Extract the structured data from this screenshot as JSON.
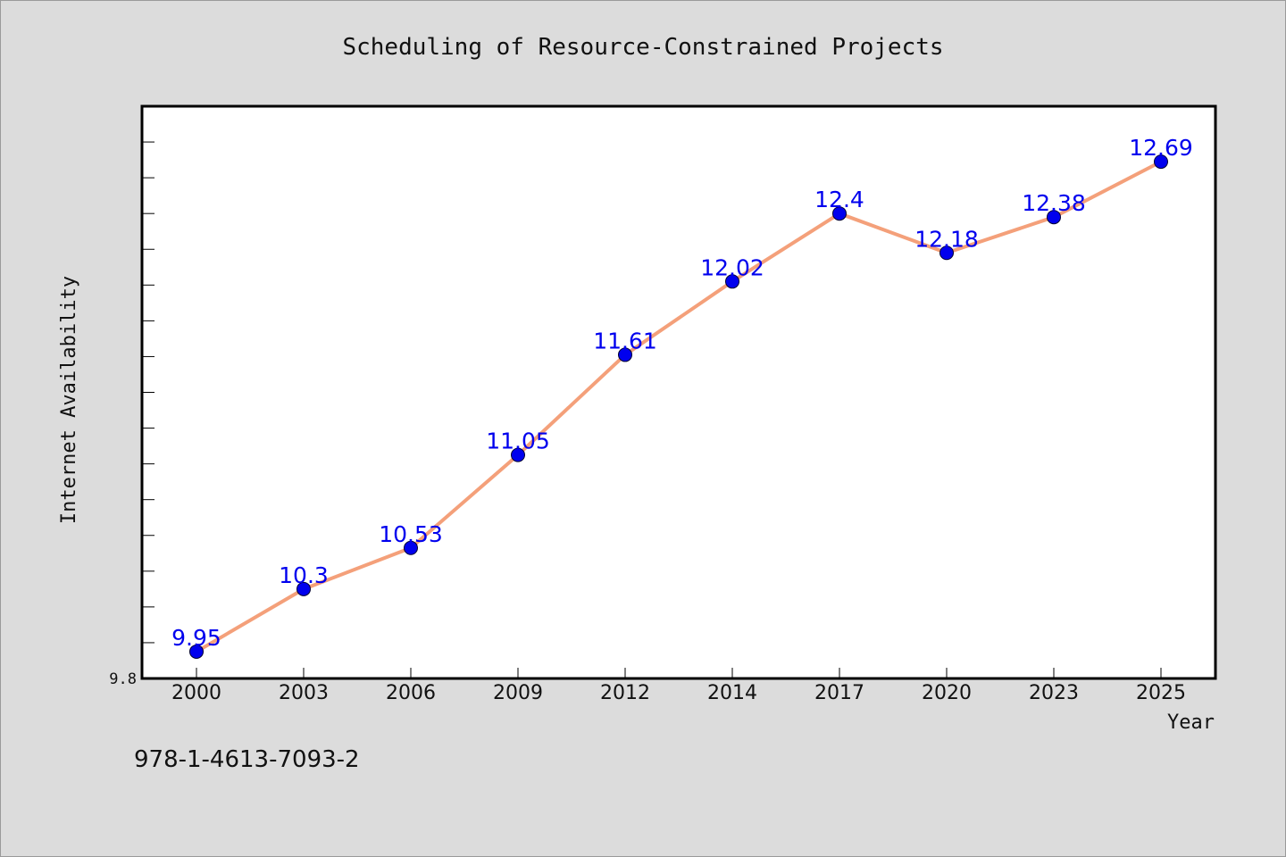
{
  "chart_data": {
    "type": "line",
    "title": "Scheduling of Resource-Constrained Projects",
    "xlabel": "Year",
    "ylabel": "Internet Availability",
    "categories": [
      "2000",
      "2003",
      "2006",
      "2009",
      "2012",
      "2014",
      "2017",
      "2020",
      "2023",
      "2025"
    ],
    "series": [
      {
        "values": [
          9.95,
          10.3,
          10.53,
          11.05,
          11.61,
          12.02,
          12.4,
          12.18,
          12.38,
          12.69
        ],
        "labels": [
          "9.95",
          "10.3",
          "10.53",
          "11.05",
          "11.61",
          "12.02",
          "12.4",
          "12.18",
          "12.38",
          "12.69"
        ],
        "line_color": "#f4a07a",
        "marker_color": "#0000ee"
      }
    ],
    "ylim": [
      9.8,
      13.0
    ],
    "y_tick_labels": [
      {
        "value": 9.8,
        "label": "9.8"
      }
    ],
    "minor_tick_step": 0.2,
    "grid": false,
    "legend": "none"
  },
  "footnote": "978-1-4613-7093-2"
}
